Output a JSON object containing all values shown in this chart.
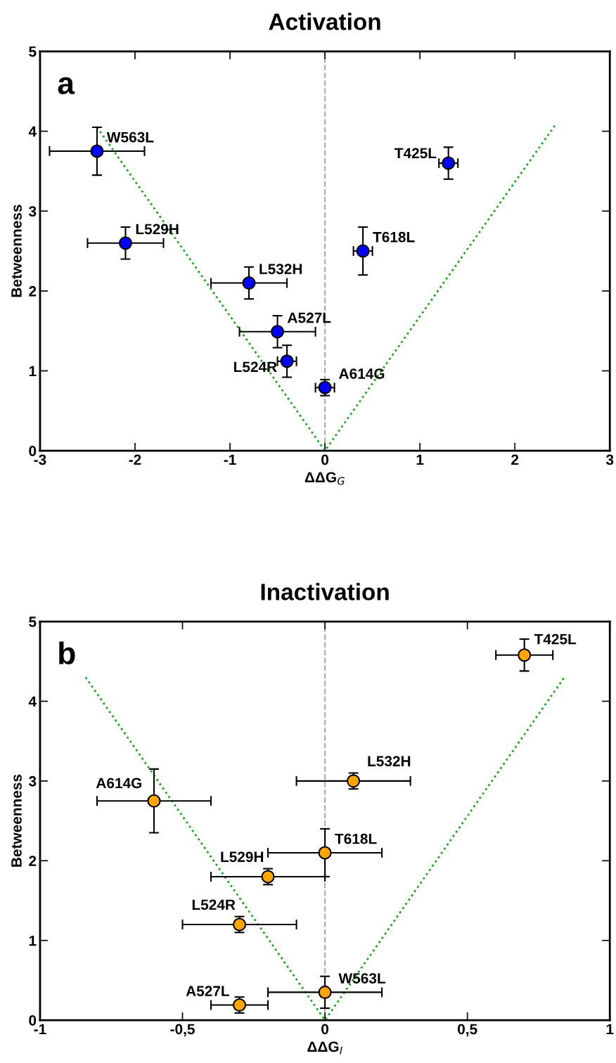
{
  "chart_data": [
    {
      "type": "scatter",
      "title": "Activation",
      "xlabel": "ΔΔG$_{G}$",
      "ylabel": "Betweenness",
      "xlim": [
        -3,
        3
      ],
      "xticks": [
        -3,
        -2,
        -1,
        0,
        1,
        2,
        3
      ],
      "ylim": [
        0,
        5
      ],
      "yticks": [
        0,
        1,
        2,
        3,
        4,
        5
      ],
      "grid": false,
      "legend": false,
      "series": [
        {
          "color": "#0000ff",
          "marker": "circle",
          "x": [
            -2.4,
            -2.1,
            -0.8,
            -0.5,
            -0.4,
            0,
            0.4,
            1.3
          ],
          "values": [
            3.75,
            2.6,
            2.1,
            1.49,
            1.12,
            0.79,
            2.5,
            3.6
          ],
          "xerrors": [
            0.5,
            0.4,
            0.4,
            0.4,
            0.1,
            0.1,
            0.1,
            0.1
          ],
          "errors": [
            0.3,
            0.2,
            0.2,
            0.2,
            0.2,
            0.1,
            0.3,
            0.2
          ]
        },
        {
          "type": "line",
          "color": "#1aa31a",
          "line_style": "dotted",
          "marker": "none",
          "x": [
            -2.4,
            0,
            2.42
          ],
          "values": [
            4.05,
            0,
            4.07
          ]
        }
      ],
      "ref_lines": [
        {
          "axis": "x",
          "value": 0,
          "label": null,
          "color": "#aaaaaa",
          "line_style": "dashed"
        }
      ],
      "annotations": [
        "a",
        {
          "text": "W563L",
          "x": -2.4,
          "y": 3.75
        },
        {
          "text": "L529H",
          "x": -2.1,
          "y": 2.6
        },
        {
          "text": "L532H",
          "x": -0.8,
          "y": 2.1
        },
        {
          "text": "A527L",
          "x": -0.5,
          "y": 1.49
        },
        {
          "text": "L524R",
          "x": -0.4,
          "y": 1.12
        },
        {
          "text": "A614G",
          "x": 0,
          "y": 0.79
        },
        {
          "text": "T618L",
          "x": 0.4,
          "y": 2.5
        },
        {
          "text": "T425L",
          "x": 1.3,
          "y": 3.6
        }
      ]
    },
    {
      "type": "scatter",
      "title": "Inactivation",
      "xlabel": "ΔΔG$_{I}$",
      "ylabel": "Betweenness",
      "xlim": [
        -1,
        1
      ],
      "xticks": [
        {
          "value": -1,
          "label": "-1"
        },
        {
          "value": -0.5,
          "label": "-0,5"
        },
        {
          "value": 0,
          "label": "0"
        },
        {
          "value": 0.5,
          "label": "0,5"
        },
        {
          "value": 1,
          "label": "1"
        }
      ],
      "ylim": [
        0,
        5
      ],
      "yticks": [
        0,
        1,
        2,
        3,
        4,
        5
      ],
      "grid": false,
      "legend": false,
      "series": [
        {
          "color": "#ffa500",
          "marker": "circle",
          "x": [
            0.7,
            0.1,
            -0.6,
            0,
            -0.2,
            -0.3,
            0,
            -0.3
          ],
          "values": [
            4.58,
            3.0,
            2.75,
            2.1,
            1.8,
            1.2,
            0.35,
            0.19
          ],
          "xerrors": [
            0.1,
            0.2,
            0.2,
            0.2,
            0.2,
            0.2,
            0.2,
            0.1
          ],
          "errors": [
            0.2,
            0.1,
            0.4,
            0.3,
            0.1,
            0.1,
            0.2,
            0.1
          ]
        },
        {
          "type": "line",
          "color": "#1aa31a",
          "line_style": "dotted",
          "marker": "none",
          "x": [
            -0.84,
            0,
            0.84
          ],
          "values": [
            4.3,
            0,
            4.3
          ]
        }
      ],
      "ref_lines": [
        {
          "axis": "x",
          "value": 0,
          "label": null,
          "color": "#aaaaaa",
          "line_style": "dashed"
        }
      ],
      "annotations": [
        "b",
        {
          "text": "T425L",
          "x": 0.7,
          "y": 4.58
        },
        {
          "text": "L532H",
          "x": 0.1,
          "y": 3.0
        },
        {
          "text": "A614G",
          "x": -0.6,
          "y": 2.75
        },
        {
          "text": "T618L",
          "x": 0,
          "y": 2.1
        },
        {
          "text": "L529H",
          "x": -0.2,
          "y": 1.8
        },
        {
          "text": "L524R",
          "x": -0.3,
          "y": 1.2
        },
        {
          "text": "W563L",
          "x": 0,
          "y": 0.35
        },
        {
          "text": "A527L",
          "x": -0.3,
          "y": 0.19
        }
      ]
    }
  ]
}
